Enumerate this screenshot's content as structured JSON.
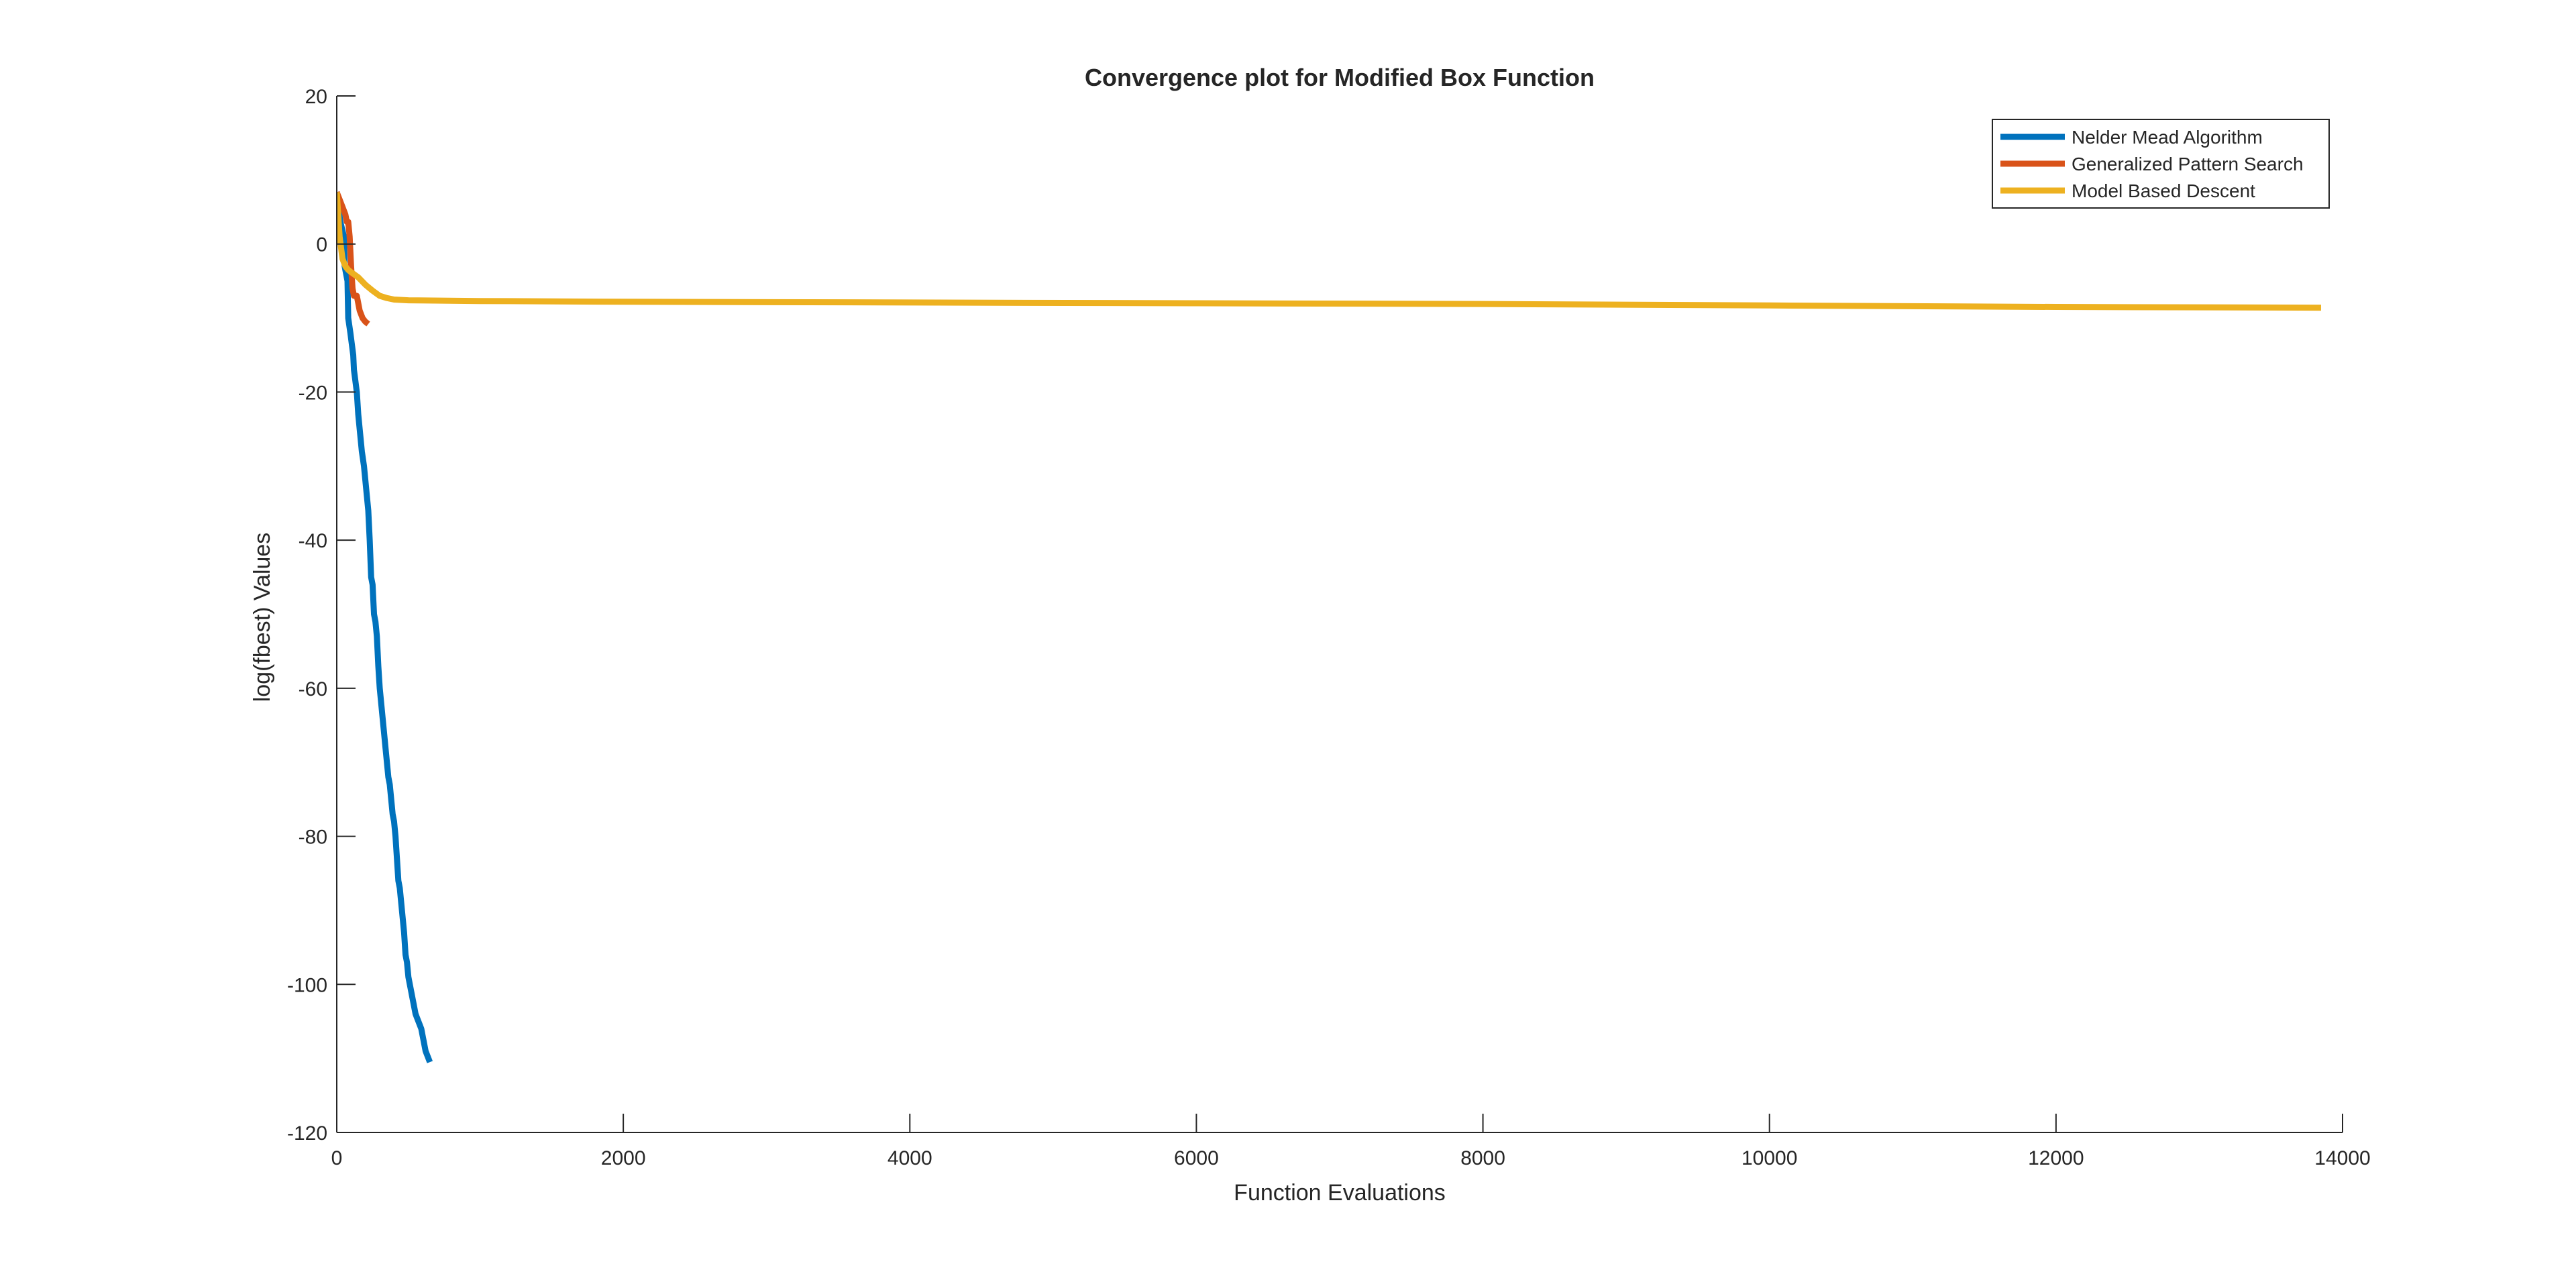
{
  "chart_data": {
    "type": "line",
    "title": "Convergence plot for Modified Box Function",
    "xlabel": "Function Evaluations",
    "ylabel": "log(fbest) Values",
    "xlim": [
      0,
      14000
    ],
    "ylim": [
      -120,
      20
    ],
    "x_ticks": [
      "0",
      "2000",
      "4000",
      "6000",
      "8000",
      "10000",
      "12000",
      "14000"
    ],
    "y_ticks": [
      "20",
      "0",
      "-20",
      "-40",
      "-60",
      "-80",
      "-100",
      "-120"
    ],
    "grid": false,
    "legend_position": "top-right",
    "series": [
      {
        "name": "Nelder Mead Algorithm",
        "color": "#0072BD",
        "x": [
          0,
          25,
          50,
          55,
          75,
          80,
          95,
          115,
          120,
          140,
          150,
          160,
          170,
          175,
          190,
          200,
          210,
          220,
          230,
          240,
          250,
          260,
          270,
          280,
          290,
          300,
          310,
          320,
          330,
          340,
          350,
          360,
          370,
          380,
          390,
          400,
          410,
          420,
          430,
          440,
          450,
          460,
          470,
          480,
          490,
          500,
          510,
          520,
          530,
          540,
          550,
          560,
          570,
          580,
          590,
          600,
          610,
          620,
          630,
          640,
          650
        ],
        "y": [
          7,
          3,
          1,
          -3,
          -5,
          -10,
          -12,
          -15,
          -17,
          -20,
          -23,
          -25,
          -27,
          -28,
          -30,
          -32,
          -34,
          -36,
          -40,
          -45,
          -46,
          -50,
          -51,
          -53,
          -57,
          -60,
          -62,
          -64,
          -66,
          -68,
          -70,
          -72,
          -73,
          -75,
          -77,
          -78,
          -80,
          -83,
          -86,
          -87,
          -89,
          -91,
          -93,
          -96,
          -97,
          -99,
          -100,
          -101,
          -102,
          -103,
          -104,
          -104.5,
          -105,
          -105.5,
          -106,
          -107,
          -108,
          -109,
          -109.5,
          -110,
          -110.5
        ]
      },
      {
        "name": "Generalized Pattern Search",
        "color": "#D95319",
        "x": [
          0,
          20,
          40,
          60,
          70,
          80,
          90,
          100,
          110,
          120,
          140,
          150,
          160,
          180,
          200,
          220
        ],
        "y": [
          7,
          6,
          5,
          4,
          3,
          3,
          1,
          -3,
          -6,
          -7,
          -7,
          -8,
          -9,
          -10,
          -10.5,
          -10.8
        ]
      },
      {
        "name": "Model Based Descent",
        "color": "#EDB120",
        "x": [
          0,
          20,
          40,
          60,
          80,
          100,
          150,
          200,
          250,
          300,
          350,
          400,
          500,
          1000,
          2000,
          4000,
          6000,
          8000,
          10000,
          12000,
          13850
        ],
        "y": [
          7,
          1,
          -2,
          -3,
          -3.5,
          -3.8,
          -4.5,
          -5.5,
          -6.3,
          -7,
          -7.3,
          -7.5,
          -7.6,
          -7.7,
          -7.8,
          -7.9,
          -8.0,
          -8.1,
          -8.3,
          -8.5,
          -8.6
        ]
      }
    ]
  }
}
